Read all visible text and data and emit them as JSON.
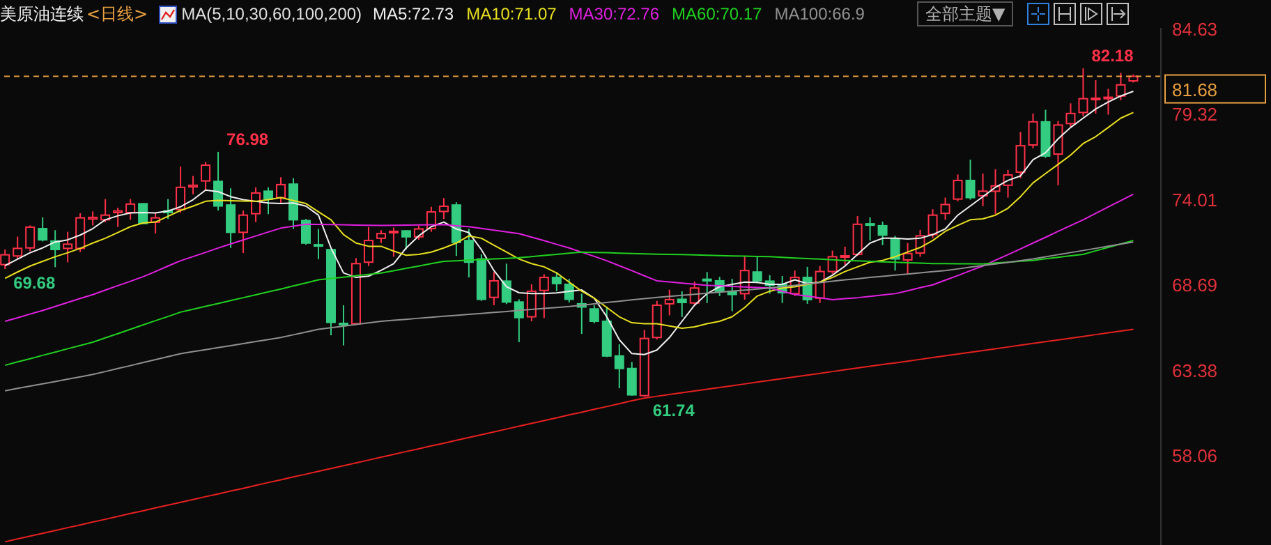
{
  "chart_data": {
    "type": "candlestick",
    "title": "美原油连续",
    "subtitle": "<日线>",
    "legend_title": "MA(5,10,30,60,100,200)",
    "legend": "top",
    "tick_labels": "y",
    "categories": [
      null,
      null,
      null,
      null,
      null,
      null,
      null,
      null,
      null,
      null,
      null,
      null,
      null,
      null,
      null,
      null,
      null,
      null,
      null,
      null,
      null,
      null,
      null,
      null,
      null,
      null,
      null,
      null,
      null,
      null,
      null,
      null,
      null,
      null,
      null,
      null,
      null,
      null,
      null,
      null,
      null,
      null,
      null,
      null,
      null,
      null,
      null,
      null,
      null,
      null,
      null,
      null,
      null,
      null,
      null,
      null,
      null,
      null,
      null,
      null,
      null,
      null,
      null,
      null,
      null,
      null,
      null,
      null,
      null,
      null,
      null,
      null,
      null,
      null,
      null,
      null,
      null,
      null,
      null,
      null,
      null,
      null,
      null,
      null,
      null,
      null,
      null,
      null,
      null,
      null,
      null
    ],
    "ohlc": [
      [
        69.96,
        70.9,
        69.68,
        70.57
      ],
      [
        70.5,
        71.7,
        70.3,
        70.97
      ],
      [
        71.0,
        72.4,
        70.8,
        72.29
      ],
      [
        72.2,
        72.9,
        71.4,
        71.5
      ],
      [
        71.43,
        72.1,
        69.8,
        70.9
      ],
      [
        70.97,
        72.0,
        70.1,
        71.23
      ],
      [
        70.97,
        73.16,
        70.74,
        72.87
      ],
      [
        72.8,
        73.27,
        72.4,
        72.9
      ],
      [
        72.75,
        74.04,
        72.6,
        73.04
      ],
      [
        73.2,
        73.5,
        72.3,
        73.3
      ],
      [
        73.2,
        74.04,
        72.75,
        73.73
      ],
      [
        73.75,
        73.75,
        72.5,
        72.52
      ],
      [
        72.6,
        73.18,
        71.9,
        72.87
      ],
      [
        73.3,
        74.04,
        72.8,
        73.2
      ],
      [
        73.39,
        76.06,
        73.2,
        74.77
      ],
      [
        74.8,
        75.48,
        74.34,
        74.9
      ],
      [
        75.17,
        76.35,
        74.6,
        76.15
      ],
      [
        75.14,
        76.98,
        73.33,
        73.61
      ],
      [
        73.67,
        74.71,
        71.0,
        71.97
      ],
      [
        71.97,
        73.33,
        70.68,
        73.04
      ],
      [
        73.13,
        74.77,
        72.61,
        74.42
      ],
      [
        74.53,
        74.77,
        73.1,
        74.04
      ],
      [
        74.13,
        75.4,
        73.76,
        74.94
      ],
      [
        74.97,
        75.34,
        72.18,
        72.75
      ],
      [
        72.7,
        72.8,
        71.2,
        71.3
      ],
      [
        71.2,
        72.18,
        70.3,
        71.17
      ],
      [
        70.89,
        70.9,
        65.56,
        66.36
      ],
      [
        66.3,
        67.43,
        64.93,
        66.28
      ],
      [
        66.28,
        70.37,
        66.2,
        70.02
      ],
      [
        70.11,
        72.3,
        69.87,
        71.46
      ],
      [
        71.6,
        72.1,
        71.3,
        71.89
      ],
      [
        72.0,
        72.27,
        70.45,
        72.03
      ],
      [
        72.06,
        72.1,
        70.9,
        71.69
      ],
      [
        71.69,
        72.38,
        71.5,
        72.18
      ],
      [
        72.2,
        73.56,
        72.0,
        73.24
      ],
      [
        73.27,
        74.1,
        72.8,
        73.59
      ],
      [
        73.67,
        73.84,
        70.5,
        71.34
      ],
      [
        71.46,
        72.18,
        69.16,
        70.11
      ],
      [
        70.31,
        70.6,
        67.7,
        67.8
      ],
      [
        67.92,
        69.5,
        67.43,
        68.95
      ],
      [
        68.93,
        70.02,
        67.5,
        67.63
      ],
      [
        67.63,
        67.8,
        65.13,
        66.66
      ],
      [
        66.71,
        68.73,
        66.43,
        68.3
      ],
      [
        68.35,
        69.36,
        66.63,
        69.16
      ],
      [
        69.16,
        69.5,
        68.3,
        68.78
      ],
      [
        68.73,
        69.07,
        67.6,
        67.8
      ],
      [
        67.52,
        68.15,
        65.65,
        67.32
      ],
      [
        67.2,
        67.43,
        66.3,
        66.43
      ],
      [
        66.43,
        67.35,
        64.2,
        64.27
      ],
      [
        64.27,
        65.0,
        62.26,
        63.49
      ],
      [
        63.49,
        63.9,
        61.8,
        61.85
      ],
      [
        61.8,
        65.9,
        61.74,
        65.36
      ],
      [
        65.42,
        67.7,
        65.3,
        67.43
      ],
      [
        67.52,
        68.4,
        66.8,
        67.78
      ],
      [
        67.8,
        68.3,
        66.7,
        67.6
      ],
      [
        67.57,
        68.9,
        67.45,
        68.5
      ],
      [
        69.05,
        69.5,
        67.57,
        68.95
      ],
      [
        68.95,
        69.2,
        68.0,
        68.3
      ],
      [
        68.3,
        69.07,
        67.06,
        68.1
      ],
      [
        68.15,
        70.5,
        67.78,
        69.59
      ],
      [
        69.5,
        70.45,
        68.8,
        68.95
      ],
      [
        68.93,
        69.3,
        68.15,
        68.67
      ],
      [
        68.73,
        69.25,
        67.57,
        68.21
      ],
      [
        68.15,
        69.59,
        68.0,
        69.16
      ],
      [
        69.16,
        69.82,
        67.52,
        67.78
      ],
      [
        67.87,
        69.87,
        67.57,
        69.53
      ],
      [
        69.53,
        70.83,
        69.39,
        70.45
      ],
      [
        70.45,
        71.08,
        69.94,
        70.51
      ],
      [
        70.6,
        72.98,
        70.5,
        72.47
      ],
      [
        72.5,
        72.9,
        71.46,
        72.45
      ],
      [
        72.38,
        72.64,
        71.17,
        71.8
      ],
      [
        71.55,
        71.75,
        69.59,
        70.31
      ],
      [
        70.25,
        71.3,
        69.39,
        70.65
      ],
      [
        70.68,
        72.12,
        70.45,
        71.75
      ],
      [
        71.83,
        73.41,
        71.6,
        73.04
      ],
      [
        73.15,
        74.13,
        72.75,
        73.7
      ],
      [
        74.04,
        75.57,
        73.9,
        75.2
      ],
      [
        75.2,
        76.49,
        74.0,
        74.13
      ],
      [
        74.25,
        75.63,
        73.6,
        74.53
      ],
      [
        74.53,
        75.9,
        73.1,
        74.86
      ],
      [
        74.9,
        75.86,
        74.13,
        75.54
      ],
      [
        75.72,
        78.22,
        75.34,
        77.36
      ],
      [
        77.41,
        79.37,
        77.2,
        78.85
      ],
      [
        78.85,
        79.6,
        76.6,
        76.72
      ],
      [
        76.84,
        78.9,
        74.9,
        78.65
      ],
      [
        78.74,
        80.0,
        78.5,
        79.37
      ],
      [
        79.43,
        82.18,
        79.2,
        80.29
      ],
      [
        80.3,
        81.44,
        79.37,
        80.32
      ],
      [
        80.35,
        80.9,
        79.3,
        80.38
      ],
      [
        80.46,
        81.9,
        80.2,
        81.15
      ],
      [
        81.4,
        81.8,
        81.3,
        81.68
      ]
    ],
    "series": [
      {
        "type": "line",
        "name": "MA5:72.73",
        "color": "#f0f0f0",
        "values": [
          69.9,
          70.3,
          70.7,
          71.0,
          71.37,
          71.5,
          71.8,
          72.2,
          72.75,
          73.0,
          73.18,
          73.2,
          73.18,
          73.3,
          73.56,
          74.0,
          74.6,
          74.5,
          74.19,
          74.0,
          73.9,
          73.8,
          73.76,
          73.8,
          73.6,
          73.04,
          71.0,
          69.44,
          69.16,
          69.24,
          69.6,
          70.02,
          71.0,
          71.75,
          72.32,
          72.61,
          72.18,
          71.95,
          70.89,
          69.59,
          68.58,
          68.21,
          68.15,
          68.15,
          68.2,
          68.3,
          68.38,
          67.87,
          66.71,
          65.28,
          64.42,
          64.36,
          64.64,
          65.42,
          66.43,
          67.43,
          68.15,
          68.58,
          68.73,
          68.87,
          68.85,
          68.73,
          68.73,
          69.01,
          68.78,
          68.87,
          69.3,
          69.87,
          70.6,
          71.3,
          71.6,
          71.6,
          71.55,
          71.6,
          71.83,
          72.18,
          73.04,
          73.61,
          74.19,
          74.77,
          75.2,
          75.48,
          76.49,
          76.93,
          77.79,
          78.5,
          79.08,
          79.65,
          80.08,
          80.46,
          80.75
        ]
      },
      {
        "type": "line",
        "name": "MA10:71.07",
        "color": "#e8e020",
        "values": [
          69.1,
          69.5,
          69.87,
          70.16,
          70.45,
          70.7,
          70.97,
          71.3,
          71.6,
          71.96,
          72.32,
          72.55,
          72.61,
          72.97,
          73.33,
          73.6,
          73.9,
          73.96,
          73.94,
          73.92,
          73.9,
          74.0,
          74.13,
          73.95,
          73.76,
          73.25,
          72.75,
          71.83,
          71.3,
          71.1,
          71.1,
          70.8,
          70.54,
          70.6,
          70.74,
          71.0,
          71.3,
          71.75,
          71.6,
          71.17,
          70.74,
          70.31,
          70.02,
          69.82,
          69.44,
          68.87,
          68.3,
          67.87,
          67.29,
          66.71,
          66.34,
          66.28,
          66.28,
          66.14,
          66.0,
          66.08,
          66.28,
          66.43,
          66.71,
          67.29,
          68.0,
          68.3,
          68.5,
          68.58,
          68.73,
          68.87,
          69.16,
          69.53,
          69.82,
          70.11,
          70.22,
          70.45,
          70.74,
          71.03,
          71.46,
          72.03,
          72.4,
          72.75,
          72.81,
          73.04,
          73.47,
          74.19,
          75.05,
          75.63,
          76.2,
          76.78,
          77.5,
          77.93,
          78.5,
          79.08,
          79.43
        ]
      },
      {
        "type": "line",
        "name": "MA30:72.76",
        "color": "#e020e0",
        "values": [
          66.43,
          66.65,
          66.88,
          67.1,
          67.35,
          67.6,
          67.85,
          68.09,
          68.37,
          68.65,
          68.92,
          69.2,
          69.53,
          69.87,
          70.2,
          70.46,
          70.72,
          70.99,
          71.25,
          71.5,
          71.74,
          71.99,
          72.23,
          72.35,
          72.47,
          72.46,
          72.45,
          72.44,
          72.42,
          72.41,
          72.4,
          72.41,
          72.42,
          72.43,
          72.44,
          72.45,
          72.38,
          72.32,
          72.21,
          72.1,
          72.0,
          71.89,
          71.67,
          71.45,
          71.22,
          71.0,
          70.73,
          70.47,
          70.2,
          69.89,
          69.58,
          69.26,
          68.95,
          68.88,
          68.81,
          68.74,
          68.67,
          68.64,
          68.6,
          68.57,
          68.53,
          68.5,
          68.3,
          68.1,
          67.99,
          67.89,
          67.78,
          67.84,
          67.9,
          67.98,
          68.07,
          68.15,
          68.33,
          68.52,
          68.7,
          68.99,
          69.28,
          69.58,
          69.87,
          70.23,
          70.58,
          70.94,
          71.3,
          71.66,
          72.03,
          72.39,
          72.75,
          73.15,
          73.55,
          73.94,
          74.34
        ]
      },
      {
        "type": "line",
        "name": "MA60:70.17",
        "color": "#20d020",
        "values": [
          63.69,
          63.9,
          64.1,
          64.31,
          64.51,
          64.72,
          64.92,
          65.13,
          65.4,
          65.66,
          65.93,
          66.2,
          66.47,
          66.73,
          67.0,
          67.18,
          67.36,
          67.54,
          67.72,
          67.9,
          68.08,
          68.26,
          68.44,
          68.63,
          68.82,
          69.01,
          69.1,
          69.18,
          69.27,
          69.35,
          69.44,
          69.58,
          69.73,
          69.87,
          70.02,
          70.16,
          70.2,
          70.24,
          70.27,
          70.31,
          70.35,
          70.39,
          70.46,
          70.53,
          70.6,
          70.67,
          70.74,
          70.72,
          70.7,
          70.67,
          70.65,
          70.63,
          70.61,
          70.6,
          70.58,
          70.56,
          70.54,
          70.52,
          70.5,
          70.49,
          70.47,
          70.45,
          70.41,
          70.37,
          70.34,
          70.3,
          70.26,
          70.22,
          70.19,
          70.16,
          70.13,
          70.11,
          70.08,
          70.05,
          70.02,
          70.02,
          70.01,
          70.01,
          70.0,
          70.06,
          70.11,
          70.17,
          70.22,
          70.32,
          70.41,
          70.51,
          70.6,
          70.82,
          71.03,
          71.25,
          71.46
        ]
      },
      {
        "type": "line",
        "name": "MA100:66.9",
        "color": "#909090",
        "values": [
          62.1,
          62.25,
          62.39,
          62.54,
          62.68,
          62.83,
          62.97,
          63.12,
          63.3,
          63.49,
          63.67,
          63.86,
          64.04,
          64.23,
          64.41,
          64.54,
          64.66,
          64.79,
          64.91,
          65.04,
          65.17,
          65.29,
          65.42,
          65.59,
          65.76,
          65.93,
          66.03,
          66.13,
          66.23,
          66.33,
          66.43,
          66.49,
          66.55,
          66.62,
          66.68,
          66.74,
          66.8,
          66.86,
          66.92,
          66.98,
          67.04,
          67.11,
          67.17,
          67.23,
          67.29,
          67.35,
          67.43,
          67.51,
          67.6,
          67.68,
          67.76,
          67.84,
          67.92,
          67.98,
          68.05,
          68.11,
          68.18,
          68.24,
          68.31,
          68.37,
          68.44,
          68.5,
          68.59,
          68.67,
          68.76,
          68.84,
          68.93,
          69.01,
          69.08,
          69.16,
          69.23,
          69.3,
          69.37,
          69.45,
          69.52,
          69.59,
          69.69,
          69.8,
          69.9,
          70.0,
          70.1,
          70.21,
          70.31,
          70.44,
          70.58,
          70.71,
          70.84,
          70.97,
          71.11,
          71.24,
          71.37
        ]
      },
      {
        "type": "line",
        "color": "#e82020",
        "values": [
          52.7,
          52.88,
          53.05,
          53.23,
          53.4,
          53.58,
          53.75,
          53.93,
          54.1,
          54.28,
          54.46,
          54.63,
          54.81,
          54.98,
          55.16,
          55.33,
          55.51,
          55.68,
          55.86,
          56.03,
          56.21,
          56.39,
          56.56,
          56.74,
          56.91,
          57.09,
          57.26,
          57.44,
          57.61,
          57.79,
          57.97,
          58.14,
          58.32,
          58.49,
          58.67,
          58.84,
          59.02,
          59.19,
          59.37,
          59.54,
          59.72,
          59.9,
          60.07,
          60.25,
          60.42,
          60.6,
          60.77,
          60.95,
          61.12,
          61.3,
          61.48,
          61.65,
          61.76,
          61.87,
          61.98,
          62.09,
          62.2,
          62.31,
          62.42,
          62.53,
          62.64,
          62.75,
          62.86,
          62.97,
          63.08,
          63.19,
          63.3,
          63.41,
          63.52,
          63.63,
          63.74,
          63.84,
          63.95,
          64.06,
          64.17,
          64.28,
          64.39,
          64.5,
          64.61,
          64.72,
          64.83,
          64.94,
          65.05,
          65.16,
          65.27,
          65.38,
          65.49,
          65.6,
          65.71,
          65.82,
          65.93
        ]
      }
    ],
    "ylim": [
      52.5,
      84.7
    ],
    "yticks": [
      58.06,
      63.38,
      68.69,
      74.01,
      79.32,
      84.63
    ],
    "ref_lines": [
      {
        "axis": "y",
        "value": 81.68,
        "label": "81.68",
        "color": "#e8a040",
        "line_style": "dashed"
      }
    ],
    "annotations": [
      "76.98",
      "69.68",
      "61.74",
      "82.18",
      "全部主题▼"
    ]
  }
}
